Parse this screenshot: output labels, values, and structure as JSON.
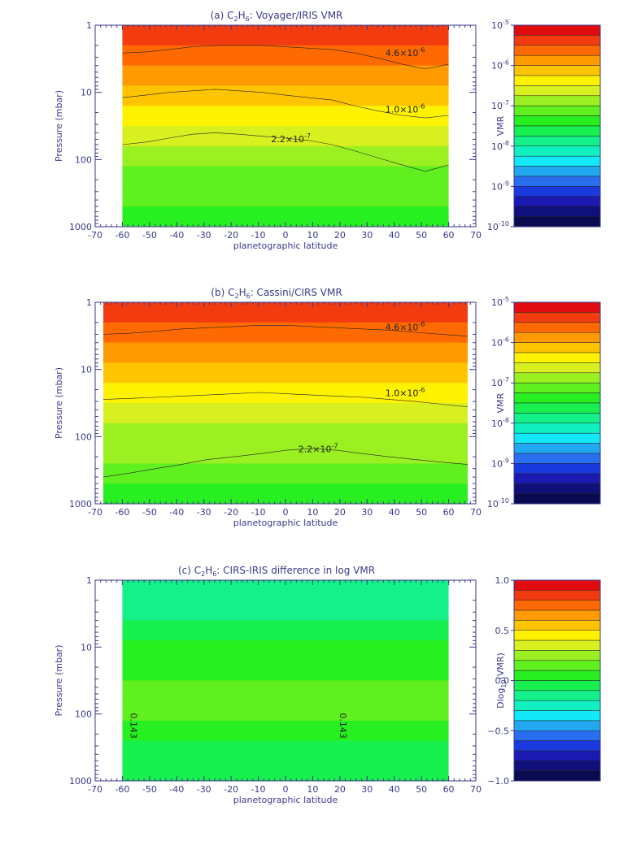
{
  "chart_data": [
    {
      "type": "contour",
      "title": {
        "prefix": "(a) C",
        "sub1": "2",
        "mid": "H",
        "sub2": "6",
        "suffix": ":  Voyager/IRIS VMR"
      },
      "xlabel": "planetographic latitude",
      "ylabel": "Pressure (mbar)",
      "xlim": [
        -70,
        70
      ],
      "ylim": [
        1000,
        1
      ],
      "yscale": "log",
      "xticks": [
        "-70",
        "-60",
        "-50",
        "-40",
        "-30",
        "-20",
        "-10",
        "0",
        "10",
        "20",
        "30",
        "40",
        "50",
        "60",
        "70"
      ],
      "yticks": [
        "1",
        "10",
        "100",
        "1000"
      ],
      "data_extent_lat": [
        -60,
        60
      ],
      "levels_log10": [
        -5.0,
        -5.333,
        -5.667,
        -6.0,
        -6.333,
        -6.667,
        -7.0,
        -7.333,
        -7.667,
        -8.0
      ],
      "contours": [
        {
          "level_label": "4.6×10",
          "level_exp": "-6",
          "label_at": [
            44,
            2.9
          ],
          "pressure_mbar": [
            2.6,
            2.5,
            2.3,
            2.1,
            2.0,
            2.0,
            2.0,
            2.1,
            2.2,
            2.3,
            2.6,
            3.1,
            3.8,
            4.5,
            3.8
          ]
        },
        {
          "level_label": "1.0×10",
          "level_exp": "-6",
          "label_at": [
            44,
            20
          ],
          "pressure_mbar": [
            12,
            11,
            10,
            9.5,
            9,
            9.5,
            10,
            11,
            12,
            13,
            16,
            19,
            22,
            24,
            22
          ]
        },
        {
          "level_label": "2.2×10",
          "level_exp": "-7",
          "label_at": [
            2,
            55
          ],
          "pressure_mbar": [
            60,
            55,
            48,
            42,
            40,
            42,
            45,
            48,
            52,
            60,
            75,
            95,
            120,
            150,
            120
          ]
        }
      ],
      "colorbar": {
        "label": "VMR",
        "ticks": [
          {
            "base": "10",
            "exp": "-5",
            "log": -5
          },
          {
            "base": "10",
            "exp": "-6",
            "log": -6
          },
          {
            "base": "10",
            "exp": "-7",
            "log": -7
          },
          {
            "base": "10",
            "exp": "-8",
            "log": -8
          },
          {
            "base": "10",
            "exp": "-9",
            "log": -9
          },
          {
            "base": "10",
            "exp": "-10",
            "log": -10
          }
        ],
        "range": [
          -10,
          -5
        ]
      }
    },
    {
      "type": "contour",
      "title": {
        "prefix": "(b) C",
        "sub1": "2",
        "mid": "H",
        "sub2": "6",
        "suffix": ":  Cassini/CIRS VMR"
      },
      "xlabel": "planetographic latitude",
      "ylabel": "Pressure (mbar)",
      "xlim": [
        -70,
        70
      ],
      "ylim": [
        1000,
        1
      ],
      "yscale": "log",
      "xticks": [
        "-70",
        "-60",
        "-50",
        "-40",
        "-30",
        "-20",
        "-10",
        "0",
        "10",
        "20",
        "30",
        "40",
        "50",
        "60",
        "70"
      ],
      "yticks": [
        "1",
        "10",
        "100",
        "1000"
      ],
      "data_extent_lat": [
        -67,
        67
      ],
      "levels_log10": [
        -5.0,
        -5.333,
        -5.667,
        -6.0,
        -6.333,
        -6.667,
        -7.0,
        -7.333,
        -7.667,
        -8.0
      ],
      "contours": [
        {
          "level_label": "4.6×10",
          "level_exp": "-6",
          "label_at": [
            44,
            2.6
          ],
          "pressure_mbar": [
            3.0,
            2.9,
            2.7,
            2.5,
            2.4,
            2.3,
            2.2,
            2.2,
            2.3,
            2.4,
            2.5,
            2.6,
            2.8,
            3.0,
            3.2
          ]
        },
        {
          "level_label": "1.0×10",
          "level_exp": "-6",
          "label_at": [
            44,
            25
          ],
          "pressure_mbar": [
            28,
            27,
            26,
            25,
            24,
            23,
            22,
            23,
            24,
            25,
            26,
            28,
            30,
            33,
            36
          ]
        },
        {
          "level_label": "2.2×10",
          "level_exp": "-7",
          "label_at": [
            12,
            170
          ],
          "pressure_mbar": [
            400,
            350,
            300,
            260,
            220,
            200,
            180,
            160,
            150,
            160,
            180,
            200,
            220,
            240,
            260
          ]
        }
      ],
      "colorbar": {
        "label": "VMR",
        "ticks": [
          {
            "base": "10",
            "exp": "-5",
            "log": -5
          },
          {
            "base": "10",
            "exp": "-6",
            "log": -6
          },
          {
            "base": "10",
            "exp": "-7",
            "log": -7
          },
          {
            "base": "10",
            "exp": "-8",
            "log": -8
          },
          {
            "base": "10",
            "exp": "-9",
            "log": -9
          },
          {
            "base": "10",
            "exp": "-10",
            "log": -10
          }
        ],
        "range": [
          -10,
          -5
        ]
      }
    },
    {
      "type": "contour",
      "title": {
        "prefix": "(c) C",
        "sub1": "2",
        "mid": "H",
        "sub2": "6",
        "suffix": ":  CIRS-IRIS difference in log VMR"
      },
      "xlabel": "planetographic latitude",
      "ylabel": "Pressure (mbar)",
      "xlim": [
        -70,
        70
      ],
      "ylim": [
        1000,
        1
      ],
      "yscale": "log",
      "xticks": [
        "-70",
        "-60",
        "-50",
        "-40",
        "-30",
        "-20",
        "-10",
        "0",
        "10",
        "20",
        "30",
        "40",
        "50",
        "60",
        "70"
      ],
      "yticks": [
        "1",
        "10",
        "100",
        "1000"
      ],
      "data_extent_lat": [
        -60,
        60
      ],
      "contours": [
        {
          "level_label": "0.143",
          "label_at": [
            -57,
            150
          ],
          "rotated": true
        },
        {
          "level_label": "0.143",
          "label_at": [
            20,
            150
          ],
          "rotated": true
        }
      ],
      "colorbar": {
        "label_base": "Dlog",
        "label_sub": "10",
        "label_suffix": "(VMR)",
        "ticks": [
          {
            "text": "1.0",
            "v": 1.0
          },
          {
            "text": "0.5",
            "v": 0.5
          },
          {
            "text": "0.0",
            "v": 0.0
          },
          {
            "text": "−0.5",
            "v": -0.5
          },
          {
            "text": "−1.0",
            "v": -1.0
          }
        ],
        "range": [
          -1.0,
          1.0
        ]
      }
    }
  ],
  "colors": {
    "vmr_bands": [
      "#0a0a50",
      "#10107a",
      "#1a1ab0",
      "#1a3ae0",
      "#2a6ef0",
      "#22a8f0",
      "#12e8f8",
      "#10f0c0",
      "#14f08a",
      "#18f050",
      "#28f020",
      "#60f020",
      "#9af020",
      "#d8f020",
      "#fff200",
      "#ffc400",
      "#ff9a00",
      "#ff6a00",
      "#f23c10",
      "#e00c10"
    ],
    "diff_bands": [
      "#0a0a50",
      "#10107a",
      "#1a1ab0",
      "#1a3ae0",
      "#2a6ef0",
      "#22a8f0",
      "#12e8f8",
      "#10f0c0",
      "#14f08a",
      "#18f050",
      "#28f020",
      "#60f020",
      "#9af020",
      "#d8f020",
      "#fff200",
      "#ffc400",
      "#ff9a00",
      "#ff6a00",
      "#f23c10",
      "#e00c10"
    ]
  }
}
